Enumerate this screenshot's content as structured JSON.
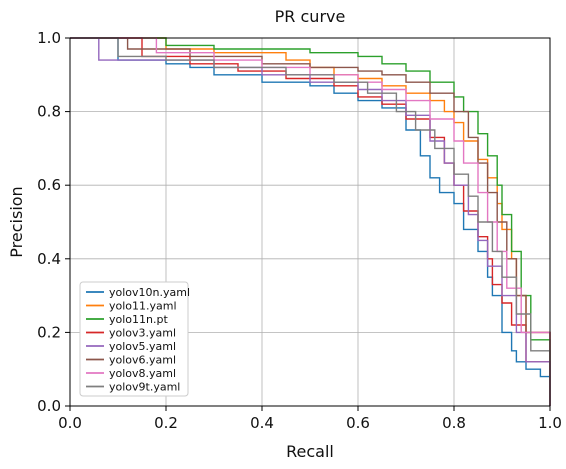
{
  "chart_data": {
    "type": "line",
    "title": "PR curve",
    "xlabel": "Recall",
    "ylabel": "Precision",
    "xlim": [
      0.0,
      1.0
    ],
    "ylim": [
      0.0,
      1.0
    ],
    "xticks": [
      "0.0",
      "0.2",
      "0.4",
      "0.6",
      "0.8",
      "1.0"
    ],
    "yticks": [
      "0.0",
      "0.2",
      "0.4",
      "0.6",
      "0.8",
      "1.0"
    ],
    "grid": true,
    "legend_position": "lower-left",
    "series": [
      {
        "name": "yolov10n.yaml",
        "color": "#1f77b4",
        "x": [
          0.0,
          0.1,
          0.1,
          0.2,
          0.25,
          0.3,
          0.4,
          0.5,
          0.55,
          0.6,
          0.65,
          0.7,
          0.73,
          0.75,
          0.77,
          0.8,
          0.82,
          0.85,
          0.87,
          0.88,
          0.9,
          0.92,
          0.93,
          0.95,
          0.98,
          1.0
        ],
        "y": [
          1.0,
          1.0,
          0.94,
          0.93,
          0.92,
          0.9,
          0.88,
          0.87,
          0.85,
          0.83,
          0.81,
          0.75,
          0.68,
          0.62,
          0.58,
          0.55,
          0.48,
          0.42,
          0.35,
          0.3,
          0.2,
          0.15,
          0.12,
          0.1,
          0.08,
          0.0
        ]
      },
      {
        "name": "yolo11.yaml",
        "color": "#ff7f0e",
        "x": [
          0.0,
          0.2,
          0.2,
          0.3,
          0.45,
          0.5,
          0.55,
          0.6,
          0.65,
          0.7,
          0.75,
          0.78,
          0.8,
          0.82,
          0.85,
          0.87,
          0.89,
          0.9,
          0.92,
          0.93,
          0.95,
          1.0
        ],
        "y": [
          1.0,
          1.0,
          0.97,
          0.96,
          0.94,
          0.92,
          0.9,
          0.89,
          0.87,
          0.85,
          0.83,
          0.8,
          0.77,
          0.72,
          0.67,
          0.62,
          0.55,
          0.48,
          0.4,
          0.3,
          0.2,
          0.0
        ]
      },
      {
        "name": "yolo11n.pt",
        "color": "#2ca02c",
        "x": [
          0.0,
          0.2,
          0.2,
          0.3,
          0.5,
          0.6,
          0.65,
          0.7,
          0.75,
          0.8,
          0.82,
          0.85,
          0.87,
          0.89,
          0.9,
          0.92,
          0.94,
          0.96,
          1.0
        ],
        "y": [
          1.0,
          1.0,
          0.98,
          0.97,
          0.96,
          0.95,
          0.93,
          0.91,
          0.88,
          0.84,
          0.8,
          0.74,
          0.68,
          0.6,
          0.52,
          0.42,
          0.3,
          0.18,
          0.0
        ]
      },
      {
        "name": "yolov3.yaml",
        "color": "#d62728",
        "x": [
          0.0,
          0.15,
          0.15,
          0.25,
          0.35,
          0.45,
          0.55,
          0.6,
          0.65,
          0.7,
          0.75,
          0.78,
          0.8,
          0.82,
          0.85,
          0.87,
          0.88,
          0.9,
          0.92,
          0.95,
          1.0
        ],
        "y": [
          1.0,
          1.0,
          0.95,
          0.93,
          0.91,
          0.89,
          0.87,
          0.84,
          0.82,
          0.78,
          0.73,
          0.66,
          0.6,
          0.53,
          0.46,
          0.4,
          0.33,
          0.28,
          0.22,
          0.12,
          0.0
        ]
      },
      {
        "name": "yolov5.yaml",
        "color": "#9467bd",
        "x": [
          0.0,
          0.06,
          0.06,
          0.2,
          0.3,
          0.4,
          0.5,
          0.6,
          0.65,
          0.7,
          0.75,
          0.78,
          0.8,
          0.83,
          0.85,
          0.87,
          0.9,
          0.93,
          0.95,
          1.0
        ],
        "y": [
          1.0,
          1.0,
          0.94,
          0.94,
          0.92,
          0.9,
          0.88,
          0.86,
          0.83,
          0.79,
          0.72,
          0.66,
          0.6,
          0.52,
          0.45,
          0.38,
          0.3,
          0.2,
          0.12,
          0.0
        ]
      },
      {
        "name": "yolov6.yaml",
        "color": "#8c564b",
        "x": [
          0.0,
          0.12,
          0.12,
          0.25,
          0.4,
          0.5,
          0.6,
          0.65,
          0.7,
          0.75,
          0.8,
          0.83,
          0.85,
          0.87,
          0.89,
          0.91,
          0.93,
          0.95,
          1.0
        ],
        "y": [
          1.0,
          1.0,
          0.97,
          0.95,
          0.93,
          0.92,
          0.91,
          0.9,
          0.88,
          0.85,
          0.8,
          0.73,
          0.66,
          0.58,
          0.5,
          0.4,
          0.3,
          0.2,
          0.0
        ]
      },
      {
        "name": "yolov8.yaml",
        "color": "#e377c2",
        "x": [
          0.0,
          0.18,
          0.18,
          0.3,
          0.4,
          0.5,
          0.6,
          0.65,
          0.7,
          0.75,
          0.8,
          0.82,
          0.85,
          0.87,
          0.89,
          0.91,
          0.94,
          1.0
        ],
        "y": [
          1.0,
          1.0,
          0.96,
          0.94,
          0.92,
          0.9,
          0.88,
          0.86,
          0.83,
          0.78,
          0.72,
          0.66,
          0.58,
          0.5,
          0.42,
          0.32,
          0.2,
          0.0
        ]
      },
      {
        "name": "yolov9t.yaml",
        "color": "#7f7f7f",
        "x": [
          0.0,
          0.1,
          0.1,
          0.2,
          0.3,
          0.45,
          0.55,
          0.62,
          0.68,
          0.72,
          0.76,
          0.8,
          0.83,
          0.85,
          0.88,
          0.9,
          0.93,
          0.96,
          1.0
        ],
        "y": [
          1.0,
          1.0,
          0.95,
          0.94,
          0.92,
          0.9,
          0.88,
          0.85,
          0.8,
          0.75,
          0.7,
          0.63,
          0.57,
          0.5,
          0.42,
          0.35,
          0.25,
          0.15,
          0.0
        ]
      }
    ]
  }
}
